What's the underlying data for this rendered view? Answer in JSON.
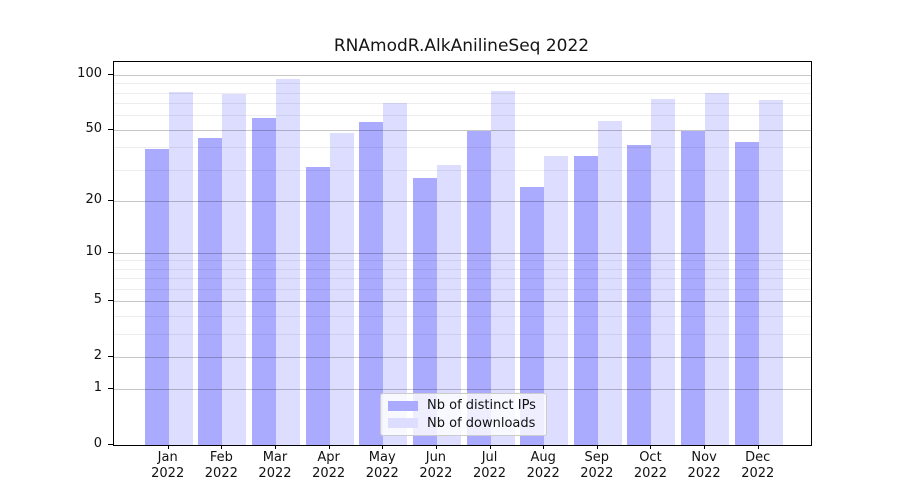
{
  "title": "RNAmodR.AlkAnilineSeq 2022",
  "colors": {
    "ips_bar": "#aaaaff",
    "downloads_bar": "#ddddff",
    "grid_major": "rgba(0,0,0,0.22)",
    "grid_minor": "rgba(0,0,0,0.07)",
    "axis": "#000000",
    "text": "#111111",
    "legend_border": "#cccccc",
    "legend_bg": "rgba(255,255,255,0.8)"
  },
  "legend": {
    "items": [
      {
        "label": "Nb of distinct IPs",
        "color": "#aaaaff"
      },
      {
        "label": "Nb of downloads",
        "color": "#ddddff"
      }
    ]
  },
  "y_axis": {
    "scale": "log1p",
    "major_ticks": [
      {
        "label": "100",
        "value": 100
      },
      {
        "label": "50",
        "value": 50
      },
      {
        "label": "20",
        "value": 20
      },
      {
        "label": "10",
        "value": 10
      },
      {
        "label": "5",
        "value": 5
      },
      {
        "label": "2",
        "value": 2
      },
      {
        "label": "1",
        "value": 1
      },
      {
        "label": "0",
        "value": 0
      }
    ],
    "minor_tick_values": [
      3,
      4,
      6,
      7,
      8,
      9,
      30,
      40,
      60,
      70,
      80,
      90
    ]
  },
  "x_axis": {
    "months": [
      "Jan",
      "Feb",
      "Mar",
      "Apr",
      "May",
      "Jun",
      "Jul",
      "Aug",
      "Sep",
      "Oct",
      "Nov",
      "Dec"
    ],
    "year": "2022"
  },
  "chart_data": {
    "type": "bar",
    "title": "RNAmodR.AlkAnilineSeq 2022",
    "categories": [
      "Jan 2022",
      "Feb 2022",
      "Mar 2022",
      "Apr 2022",
      "May 2022",
      "Jun 2022",
      "Jul 2022",
      "Aug 2022",
      "Sep 2022",
      "Oct 2022",
      "Nov 2022",
      "Dec 2022"
    ],
    "series": [
      {
        "name": "Nb of distinct IPs",
        "color": "#aaaaff",
        "values": [
          39,
          45,
          58,
          31,
          55,
          27,
          49,
          24,
          36,
          41,
          49,
          43
        ]
      },
      {
        "name": "Nb of downloads",
        "color": "#ddddff",
        "values": [
          81,
          79,
          95,
          48,
          70,
          32,
          82,
          36,
          56,
          74,
          80,
          73
        ]
      }
    ],
    "yscale": "log1p",
    "y_ticks": [
      0,
      1,
      2,
      5,
      10,
      20,
      50,
      100
    ],
    "ylim": [
      0,
      118
    ],
    "grid": true,
    "grid_over_bars": true,
    "legend_position": "lower center",
    "xlabel": "",
    "ylabel": ""
  }
}
